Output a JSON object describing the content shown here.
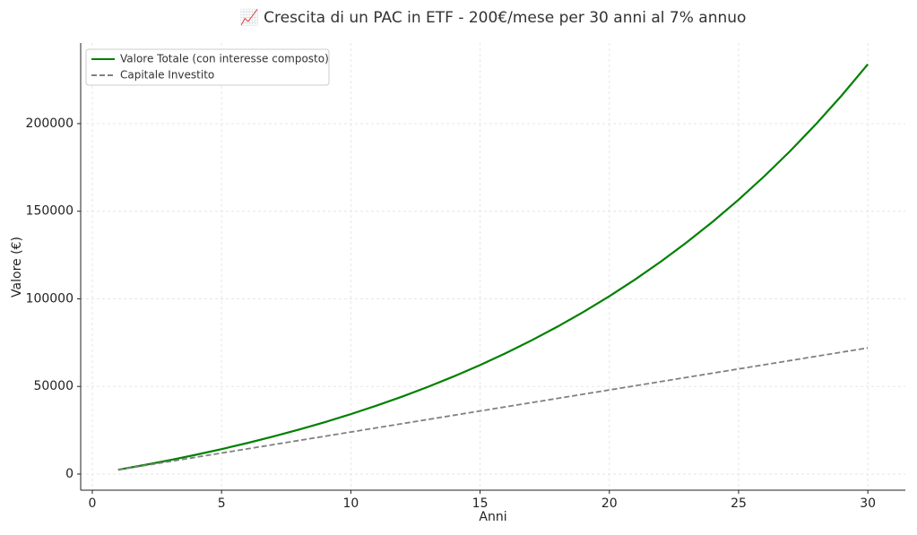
{
  "chart_data": {
    "type": "line",
    "title": "📈 Crescita di un PAC in ETF - 200€/mese per 30 anni al 7% annuo",
    "x_label": "Anni",
    "y_label": "Valore (€)",
    "x": [
      1,
      2,
      3,
      4,
      5,
      6,
      7,
      8,
      9,
      10,
      11,
      12,
      13,
      14,
      15,
      16,
      17,
      18,
      19,
      20,
      21,
      22,
      23,
      24,
      25,
      26,
      27,
      28,
      29,
      30
    ],
    "series": [
      {
        "name": "Valore Totale (con interesse composto)",
        "color": "#008000",
        "dash": "solid",
        "values": [
          2476,
          5125,
          7960,
          10996,
          14242,
          17714,
          21430,
          25406,
          29660,
          34212,
          39082,
          44294,
          49870,
          55838,
          62222,
          69054,
          76364,
          84186,
          92554,
          101510,
          111092,
          121344,
          132314,
          144052,
          156612,
          170052,
          184432,
          199818,
          216280,
          233890
        ]
      },
      {
        "name": "Capitale Investito",
        "color": "#808080",
        "dash": "dashed",
        "values": [
          2400,
          4800,
          7200,
          9600,
          12000,
          14400,
          16800,
          19200,
          21600,
          24000,
          26400,
          28800,
          31200,
          33600,
          36000,
          38400,
          40800,
          43200,
          45600,
          48000,
          50400,
          52800,
          55200,
          57600,
          60000,
          62400,
          64800,
          67200,
          69600,
          72000
        ]
      }
    ],
    "xlim": [
      -0.45,
      31.45
    ],
    "xticks": [
      0,
      5,
      10,
      15,
      20,
      25,
      30
    ],
    "ylim": [
      -9200,
      246000
    ],
    "yticks": [
      0,
      50000,
      100000,
      150000,
      200000
    ],
    "grid": true,
    "legend": "upper-left"
  }
}
